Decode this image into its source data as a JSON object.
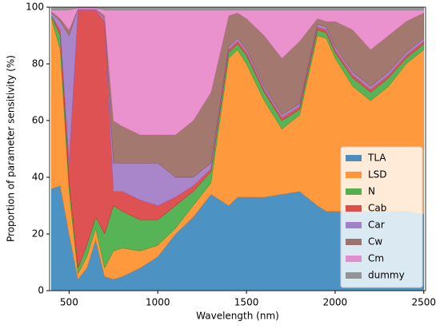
{
  "chart_data": {
    "type": "stacked_area",
    "x_label": "Wavelength (nm)",
    "y_label": "Proportion of parameter sensitivity (%)",
    "x": [
      400,
      450,
      500,
      550,
      600,
      650,
      700,
      750,
      800,
      900,
      1000,
      1100,
      1200,
      1300,
      1400,
      1450,
      1500,
      1600,
      1700,
      1800,
      1900,
      1950,
      2000,
      2100,
      2200,
      2300,
      2400,
      2500
    ],
    "series": [
      {
        "name": "TLA",
        "color": "#1f77b4",
        "values": [
          36,
          37,
          20,
          4,
          8,
          18,
          5,
          4,
          5,
          8,
          12,
          20,
          26,
          34,
          30,
          33,
          33,
          33,
          34,
          35,
          30,
          28,
          28,
          28,
          28,
          28,
          28,
          27
        ]
      },
      {
        "name": "LSD",
        "color": "#ff7f0e",
        "values": [
          60,
          48,
          15,
          2,
          4,
          4,
          3,
          10,
          10,
          6,
          4,
          2,
          4,
          4,
          52,
          52,
          47,
          34,
          23,
          27,
          60,
          61,
          54,
          44,
          39,
          44,
          52,
          58
        ]
      },
      {
        "name": "N",
        "color": "#2ca02c",
        "values": [
          1,
          5,
          3,
          2,
          4,
          4,
          12,
          16,
          13,
          11,
          9,
          8,
          5,
          4,
          2,
          2,
          3,
          3,
          3,
          2,
          2,
          2,
          2,
          3,
          3,
          3,
          2,
          2
        ]
      },
      {
        "name": "Cab",
        "color": "#d62728",
        "values": [
          0,
          2,
          7,
          91,
          83,
          73,
          75,
          5,
          7,
          7,
          5,
          3,
          2,
          1,
          1,
          1,
          1,
          1,
          1,
          1,
          1,
          1,
          1,
          1,
          1,
          1,
          1,
          1
        ]
      },
      {
        "name": "Car",
        "color": "#9467bd",
        "values": [
          1,
          3,
          45,
          0.5,
          0.5,
          0.5,
          1,
          10,
          10,
          13,
          15,
          7,
          3,
          2,
          1,
          1,
          1,
          1,
          1,
          1,
          1,
          1,
          1,
          1,
          1,
          1,
          1,
          1
        ]
      },
      {
        "name": "Cw",
        "color": "#8c564b",
        "values": [
          0.5,
          1,
          2,
          0,
          0,
          0,
          1,
          15,
          13,
          10,
          10,
          15,
          20,
          25,
          11,
          9,
          11,
          18,
          20,
          22,
          2,
          2,
          9,
          15,
          13,
          13,
          11,
          9
        ]
      },
      {
        "name": "Cm",
        "color": "#e377c2",
        "values": [
          0.5,
          3,
          7,
          0.3,
          0.3,
          0.3,
          2,
          39,
          41,
          44,
          44,
          44,
          39,
          29,
          2,
          1,
          3,
          9,
          17,
          11,
          3,
          4,
          4,
          7,
          14,
          9,
          4,
          1
        ]
      },
      {
        "name": "dummy",
        "color": "#7f7f7f",
        "values": [
          1,
          1,
          1,
          0.2,
          0.2,
          0.2,
          1,
          1,
          1,
          1,
          1,
          1,
          1,
          1,
          1,
          1,
          1,
          1,
          1,
          1,
          1,
          1,
          1,
          1,
          1,
          1,
          1,
          1
        ]
      }
    ],
    "xlim": [
      390,
      2510
    ],
    "ylim": [
      0,
      100
    ],
    "xticks": [
      500,
      1000,
      1500,
      2000,
      2500
    ],
    "yticks": [
      0,
      20,
      40,
      60,
      80,
      100
    ],
    "legend": "lower right"
  }
}
